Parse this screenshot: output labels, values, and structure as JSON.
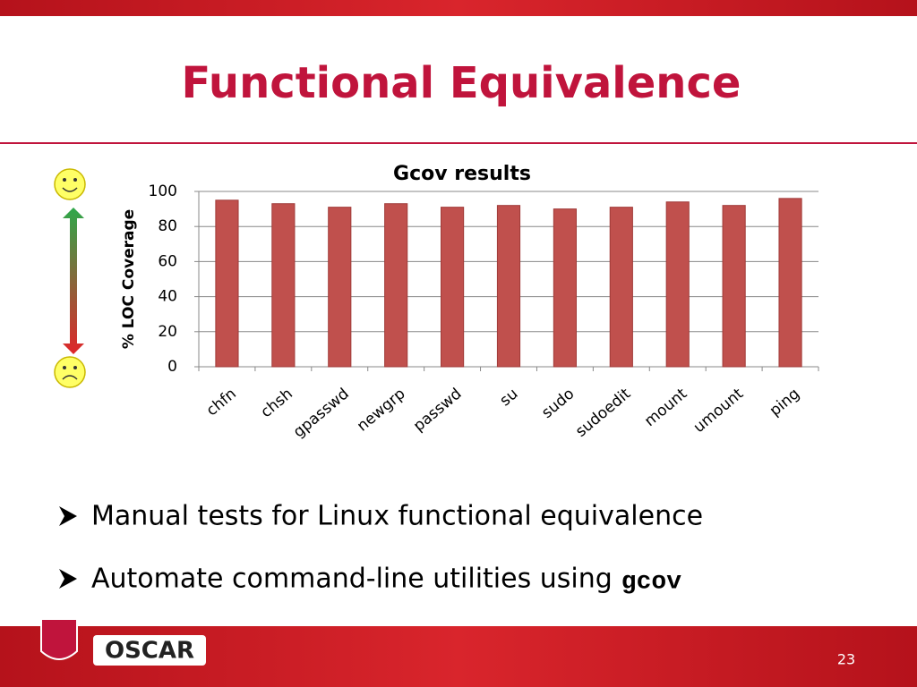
{
  "slide": {
    "title": "Functional Equivalence",
    "bullets": [
      {
        "text": "Manual tests for Linux functional equivalence"
      },
      {
        "text": "Automate command-line utilities using",
        "code": "gcov"
      }
    ],
    "logo": "OSCAR",
    "page_number": "23"
  },
  "chart_data": {
    "type": "bar",
    "title": "Gcov results",
    "y_label": "% LOC Coverage",
    "categories": [
      "chfn",
      "chsh",
      "gpasswd",
      "newgrp",
      "passwd",
      "su",
      "sudo",
      "sudoedit",
      "mount",
      "umount",
      "ping"
    ],
    "values": [
      95,
      93,
      91,
      93,
      91,
      92,
      90,
      91,
      94,
      92,
      96
    ],
    "color": "#c0504d",
    "ylim": [
      0,
      100
    ],
    "yticks": [
      0,
      20,
      40,
      60,
      80,
      100
    ],
    "grid": true
  }
}
